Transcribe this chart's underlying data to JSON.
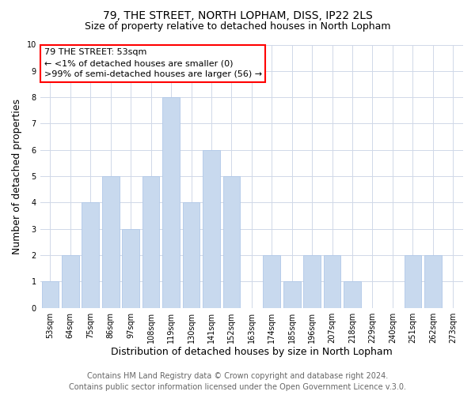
{
  "title": "79, THE STREET, NORTH LOPHAM, DISS, IP22 2LS",
  "subtitle": "Size of property relative to detached houses in North Lopham",
  "xlabel": "Distribution of detached houses by size in North Lopham",
  "ylabel": "Number of detached properties",
  "bar_color": "#c8d9ee",
  "bar_edge_color": "#b0c8e8",
  "categories": [
    "53sqm",
    "64sqm",
    "75sqm",
    "86sqm",
    "97sqm",
    "108sqm",
    "119sqm",
    "130sqm",
    "141sqm",
    "152sqm",
    "163sqm",
    "174sqm",
    "185sqm",
    "196sqm",
    "207sqm",
    "218sqm",
    "229sqm",
    "240sqm",
    "251sqm",
    "262sqm",
    "273sqm"
  ],
  "values": [
    1,
    2,
    4,
    5,
    3,
    5,
    8,
    4,
    6,
    5,
    0,
    2,
    1,
    2,
    2,
    1,
    0,
    0,
    2,
    2,
    0
  ],
  "ylim": [
    0,
    10
  ],
  "yticks": [
    0,
    1,
    2,
    3,
    4,
    5,
    6,
    7,
    8,
    9,
    10
  ],
  "annotation_lines": [
    "79 THE STREET: 53sqm",
    "← <1% of detached houses are smaller (0)",
    ">99% of semi-detached houses are larger (56) →"
  ],
  "footer_line1": "Contains HM Land Registry data © Crown copyright and database right 2024.",
  "footer_line2": "Contains public sector information licensed under the Open Government Licence v.3.0.",
  "grid_color": "#d0d8e8",
  "background_color": "#ffffff",
  "title_fontsize": 10,
  "subtitle_fontsize": 9,
  "axis_label_fontsize": 9,
  "tick_label_fontsize": 7,
  "annotation_fontsize": 8,
  "footer_fontsize": 7
}
